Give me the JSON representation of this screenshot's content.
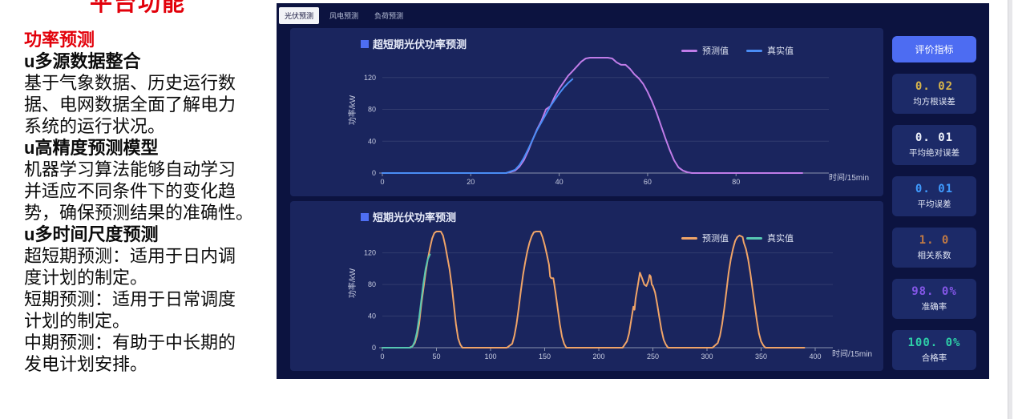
{
  "page_title": "平台功能",
  "left_panel": {
    "heading": "功率预测",
    "sections": [
      {
        "title": "u多源数据整合",
        "body": "基于气象数据、历史运行数\n据、电网数据全面了解电力\n系统的运行状况。"
      },
      {
        "title": "u高精度预测模型",
        "body": "机器学习算法能够自动学习\n并适应不同条件下的变化趋\n势，确保预测结果的准确性。"
      },
      {
        "title": "u多时间尺度预测",
        "body": "超短期预测：适用于日内调\n度计划的制定。\n短期预测：适用于日常调度\n计划的制定。\n中期预测：有助于中长期的\n发电计划安排。"
      }
    ]
  },
  "dashboard": {
    "tabs": [
      {
        "label": "光伏预测",
        "active": true
      },
      {
        "label": "风电预测",
        "active": false
      },
      {
        "label": "负荷预测",
        "active": false
      }
    ],
    "accent_color": "#4e6ef2",
    "metrics": {
      "button_label": "评价指标",
      "cards": [
        {
          "value": "0. 02",
          "label": "均方根误差",
          "color": "#d9b54a"
        },
        {
          "value": "0. 01",
          "label": "平均绝对误差",
          "color": "#eef1fa"
        },
        {
          "value": "0. 01",
          "label": "平均误差",
          "color": "#3f9bff"
        },
        {
          "value": "1. 0",
          "label": "相关系数",
          "color": "#c17a45"
        },
        {
          "value": "98. 0%",
          "label": "准确率",
          "color": "#8557e8"
        },
        {
          "value": "100. 0%",
          "label": "合格率",
          "color": "#2ecfa8"
        }
      ]
    }
  },
  "chart_data": [
    {
      "type": "line",
      "title": "超短期光伏功率预测",
      "xlabel": "时间/15min",
      "ylabel": "功率/kW",
      "xlim": [
        0,
        97
      ],
      "ylim": [
        0,
        150
      ],
      "x_ticks": [
        0,
        20,
        40,
        60,
        80
      ],
      "y_ticks": [
        0,
        40,
        80,
        120
      ],
      "grid": true,
      "legend_position": "top-right",
      "series": [
        {
          "name": "预测值",
          "color": "#c07ce8",
          "points": [
            [
              0,
              0
            ],
            [
              28,
              0
            ],
            [
              30,
              3
            ],
            [
              31,
              8
            ],
            [
              32,
              16
            ],
            [
              33,
              28
            ],
            [
              34,
              42
            ],
            [
              35,
              55
            ],
            [
              36,
              66
            ],
            [
              37,
              80
            ],
            [
              38,
              84
            ],
            [
              39,
              96
            ],
            [
              40,
              106
            ],
            [
              41,
              114
            ],
            [
              42,
              122
            ],
            [
              43,
              128
            ],
            [
              44,
              134
            ],
            [
              45,
              140
            ],
            [
              46,
              144
            ],
            [
              47,
              145
            ],
            [
              51,
              145
            ],
            [
              52,
              144
            ],
            [
              53,
              139
            ],
            [
              54,
              136
            ],
            [
              55,
              136
            ],
            [
              56,
              131
            ],
            [
              57,
              124
            ],
            [
              58,
              119
            ],
            [
              59,
              112
            ],
            [
              60,
              102
            ],
            [
              61,
              90
            ],
            [
              62,
              76
            ],
            [
              63,
              60
            ],
            [
              64,
              44
            ],
            [
              65,
              29
            ],
            [
              66,
              16
            ],
            [
              67,
              7
            ],
            [
              68,
              3
            ],
            [
              69,
              1
            ],
            [
              70,
              0
            ],
            [
              95,
              0
            ]
          ]
        },
        {
          "name": "真实值",
          "color": "#4a8df5",
          "points": [
            [
              0,
              0
            ],
            [
              28,
              0
            ],
            [
              30,
              4
            ],
            [
              31,
              10
            ],
            [
              32,
              19
            ],
            [
              33,
              30
            ],
            [
              34,
              42
            ],
            [
              35,
              54
            ],
            [
              36,
              64
            ],
            [
              37,
              74
            ],
            [
              38,
              84
            ],
            [
              39,
              92
            ],
            [
              40,
              100
            ],
            [
              41,
              107
            ],
            [
              42,
              113
            ],
            [
              43,
              118
            ]
          ]
        }
      ]
    },
    {
      "type": "line",
      "title": "短期光伏功率预测",
      "xlabel": "时间/15min",
      "ylabel": "功率/kW",
      "xlim": [
        0,
        400
      ],
      "ylim": [
        0,
        150
      ],
      "x_ticks": [
        0,
        50,
        100,
        150,
        200,
        250,
        300,
        350,
        400
      ],
      "y_ticks": [
        0,
        40,
        80,
        120
      ],
      "grid": true,
      "legend_position": "top-right",
      "series": [
        {
          "name": "预测值",
          "color": "#f0a468",
          "points": [
            [
              0,
              0
            ],
            [
              25,
              0
            ],
            [
              28,
              2
            ],
            [
              30,
              6
            ],
            [
              32,
              15
            ],
            [
              34,
              30
            ],
            [
              36,
              55
            ],
            [
              38,
              75
            ],
            [
              40,
              95
            ],
            [
              42,
              112
            ],
            [
              44,
              126
            ],
            [
              46,
              138
            ],
            [
              48,
              145
            ],
            [
              50,
              147
            ],
            [
              54,
              147
            ],
            [
              56,
              142
            ],
            [
              58,
              130
            ],
            [
              60,
              115
            ],
            [
              62,
              100
            ],
            [
              64,
              80
            ],
            [
              66,
              55
            ],
            [
              68,
              30
            ],
            [
              70,
              12
            ],
            [
              72,
              4
            ],
            [
              74,
              0
            ],
            [
              115,
              0
            ],
            [
              120,
              5
            ],
            [
              122,
              15
            ],
            [
              124,
              30
            ],
            [
              126,
              50
            ],
            [
              128,
              72
            ],
            [
              130,
              92
            ],
            [
              132,
              108
            ],
            [
              134,
              122
            ],
            [
              136,
              133
            ],
            [
              138,
              141
            ],
            [
              140,
              146
            ],
            [
              142,
              147
            ],
            [
              146,
              147
            ],
            [
              148,
              140
            ],
            [
              150,
              130
            ],
            [
              152,
              118
            ],
            [
              154,
              105
            ],
            [
              155,
              90
            ],
            [
              156,
              88
            ],
            [
              158,
              88
            ],
            [
              160,
              70
            ],
            [
              162,
              50
            ],
            [
              164,
              30
            ],
            [
              166,
              14
            ],
            [
              168,
              5
            ],
            [
              170,
              0
            ],
            [
              222,
              0
            ],
            [
              226,
              8
            ],
            [
              228,
              18
            ],
            [
              230,
              35
            ],
            [
              232,
              52
            ],
            [
              233,
              48
            ],
            [
              234,
              62
            ],
            [
              236,
              78
            ],
            [
              238,
              95
            ],
            [
              240,
              88
            ],
            [
              242,
              80
            ],
            [
              244,
              78
            ],
            [
              246,
              85
            ],
            [
              247,
              92
            ],
            [
              248,
              90
            ],
            [
              249,
              80
            ],
            [
              250,
              78
            ],
            [
              252,
              70
            ],
            [
              254,
              55
            ],
            [
              256,
              38
            ],
            [
              258,
              22
            ],
            [
              260,
              10
            ],
            [
              262,
              4
            ],
            [
              264,
              0
            ],
            [
              305,
              0
            ],
            [
              310,
              6
            ],
            [
              312,
              15
            ],
            [
              314,
              30
            ],
            [
              316,
              50
            ],
            [
              318,
              72
            ],
            [
              320,
              95
            ],
            [
              322,
              112
            ],
            [
              324,
              125
            ],
            [
              326,
              135
            ],
            [
              328,
              140
            ],
            [
              330,
              142
            ],
            [
              333,
              140
            ],
            [
              334,
              133
            ],
            [
              336,
              125
            ],
            [
              338,
              112
            ],
            [
              340,
              95
            ],
            [
              342,
              75
            ],
            [
              344,
              55
            ],
            [
              346,
              35
            ],
            [
              348,
              18
            ],
            [
              350,
              8
            ],
            [
              352,
              3
            ],
            [
              354,
              0
            ],
            [
              390,
              0
            ]
          ]
        },
        {
          "name": "真实值",
          "color": "#57c7b2",
          "points": [
            [
              0,
              0
            ],
            [
              26,
              0
            ],
            [
              28,
              2
            ],
            [
              30,
              8
            ],
            [
              32,
              20
            ],
            [
              34,
              38
            ],
            [
              36,
              60
            ],
            [
              38,
              82
            ],
            [
              40,
              100
            ],
            [
              42,
              112
            ],
            [
              44,
              118
            ]
          ]
        }
      ]
    }
  ]
}
